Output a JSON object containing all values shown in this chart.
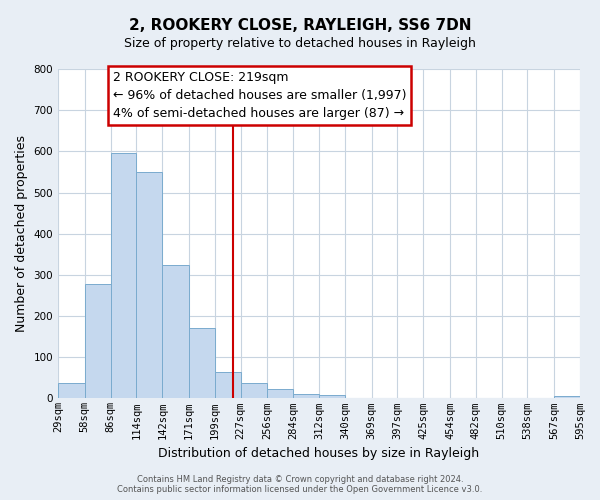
{
  "title": "2, ROOKERY CLOSE, RAYLEIGH, SS6 7DN",
  "subtitle": "Size of property relative to detached houses in Rayleigh",
  "xlabel": "Distribution of detached houses by size in Rayleigh",
  "ylabel": "Number of detached properties",
  "bar_edges": [
    29,
    58,
    86,
    114,
    142,
    171,
    199,
    227,
    256,
    284,
    312,
    340,
    369,
    397,
    425,
    454,
    482,
    510,
    538,
    567,
    595
  ],
  "bar_heights": [
    38,
    278,
    595,
    550,
    325,
    170,
    65,
    38,
    22,
    10,
    8,
    0,
    0,
    2,
    0,
    0,
    0,
    0,
    0,
    5
  ],
  "bar_color": "#c5d8ee",
  "bar_edge_color": "#7aabce",
  "vline_x": 219,
  "vline_color": "#cc0000",
  "ylim": [
    0,
    800
  ],
  "yticks": [
    0,
    100,
    200,
    300,
    400,
    500,
    600,
    700,
    800
  ],
  "tick_labels": [
    "29sqm",
    "58sqm",
    "86sqm",
    "114sqm",
    "142sqm",
    "171sqm",
    "199sqm",
    "227sqm",
    "256sqm",
    "284sqm",
    "312sqm",
    "340sqm",
    "369sqm",
    "397sqm",
    "425sqm",
    "454sqm",
    "482sqm",
    "510sqm",
    "538sqm",
    "567sqm",
    "595sqm"
  ],
  "annotation_title": "2 ROOKERY CLOSE: 219sqm",
  "annotation_line1": "← 96% of detached houses are smaller (1,997)",
  "annotation_line2": "4% of semi-detached houses are larger (87) →",
  "annotation_box_color": "#ffffff",
  "annotation_box_edge": "#cc0000",
  "footer1": "Contains HM Land Registry data © Crown copyright and database right 2024.",
  "footer2": "Contains public sector information licensed under the Open Government Licence v3.0.",
  "bg_color": "#e8eef5",
  "plot_bg_color": "#ffffff",
  "grid_color": "#c8d4e0",
  "title_fontsize": 11,
  "subtitle_fontsize": 9,
  "ylabel_fontsize": 9,
  "xlabel_fontsize": 9,
  "tick_fontsize": 7.5,
  "annotation_fontsize": 9
}
